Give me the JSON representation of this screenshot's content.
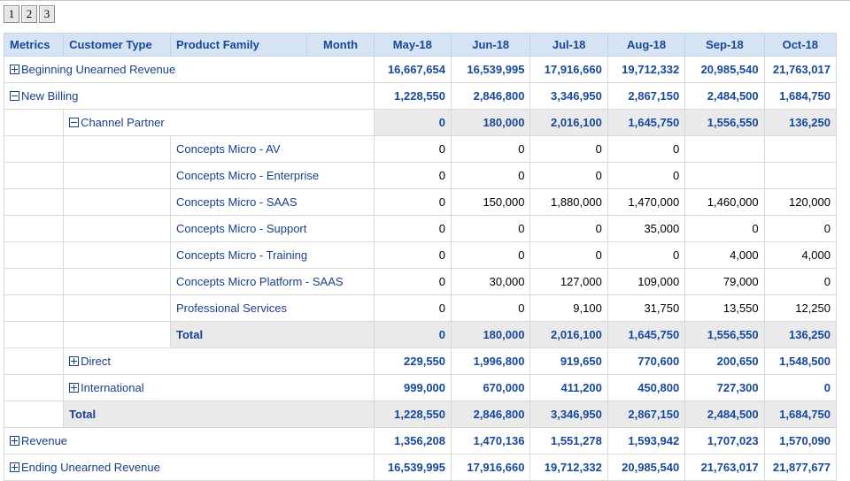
{
  "pager": [
    "1",
    "2",
    "3"
  ],
  "columns": {
    "dims": [
      "Metrics",
      "Customer Type",
      "Product Family",
      "Month"
    ],
    "months": [
      "May-18",
      "Jun-18",
      "Jul-18",
      "Aug-18",
      "Sep-18",
      "Oct-18"
    ]
  },
  "rows": {
    "beginning": {
      "label": "Beginning Unearned Revenue",
      "values": [
        "16,667,654",
        "16,539,995",
        "17,916,660",
        "19,712,332",
        "20,985,540",
        "21,763,017"
      ]
    },
    "new_billing": {
      "label": "New Billing",
      "values": [
        "1,228,550",
        "2,846,800",
        "3,346,950",
        "2,867,150",
        "2,484,500",
        "1,684,750"
      ]
    },
    "channel_partner": {
      "label": "Channel Partner",
      "values": [
        "0",
        "180,000",
        "2,016,100",
        "1,645,750",
        "1,556,550",
        "136,250"
      ]
    },
    "products": [
      {
        "label": "Concepts Micro - AV",
        "values": [
          "0",
          "0",
          "0",
          "0",
          "",
          ""
        ]
      },
      {
        "label": "Concepts Micro - Enterprise",
        "values": [
          "0",
          "0",
          "0",
          "0",
          "",
          ""
        ]
      },
      {
        "label": "Concepts Micro - SAAS",
        "values": [
          "0",
          "150,000",
          "1,880,000",
          "1,470,000",
          "1,460,000",
          "120,000"
        ]
      },
      {
        "label": "Concepts Micro - Support",
        "values": [
          "0",
          "0",
          "0",
          "35,000",
          "0",
          "0"
        ]
      },
      {
        "label": "Concepts Micro - Training",
        "values": [
          "0",
          "0",
          "0",
          "0",
          "4,000",
          "4,000"
        ]
      },
      {
        "label": "Concepts Micro Platform - SAAS",
        "values": [
          "0",
          "30,000",
          "127,000",
          "109,000",
          "79,000",
          "0"
        ]
      },
      {
        "label": "Professional Services",
        "values": [
          "0",
          "0",
          "9,100",
          "31,750",
          "13,550",
          "12,250"
        ]
      }
    ],
    "channel_total": {
      "label": "Total",
      "values": [
        "0",
        "180,000",
        "2,016,100",
        "1,645,750",
        "1,556,550",
        "136,250"
      ]
    },
    "direct": {
      "label": "Direct",
      "values": [
        "229,550",
        "1,996,800",
        "919,650",
        "770,600",
        "200,650",
        "1,548,500"
      ]
    },
    "international": {
      "label": "International",
      "values": [
        "999,000",
        "670,000",
        "411,200",
        "450,800",
        "727,300",
        "0"
      ]
    },
    "new_billing_total": {
      "label": "Total",
      "values": [
        "1,228,550",
        "2,846,800",
        "3,346,950",
        "2,867,150",
        "2,484,500",
        "1,684,750"
      ]
    },
    "revenue": {
      "label": "Revenue",
      "values": [
        "1,356,208",
        "1,470,136",
        "1,551,278",
        "1,593,942",
        "1,707,023",
        "1,570,090"
      ]
    },
    "ending": {
      "label": "Ending Unearned Revenue",
      "values": [
        "16,539,995",
        "17,916,660",
        "19,712,332",
        "20,985,540",
        "21,763,017",
        "21,877,677"
      ]
    }
  }
}
